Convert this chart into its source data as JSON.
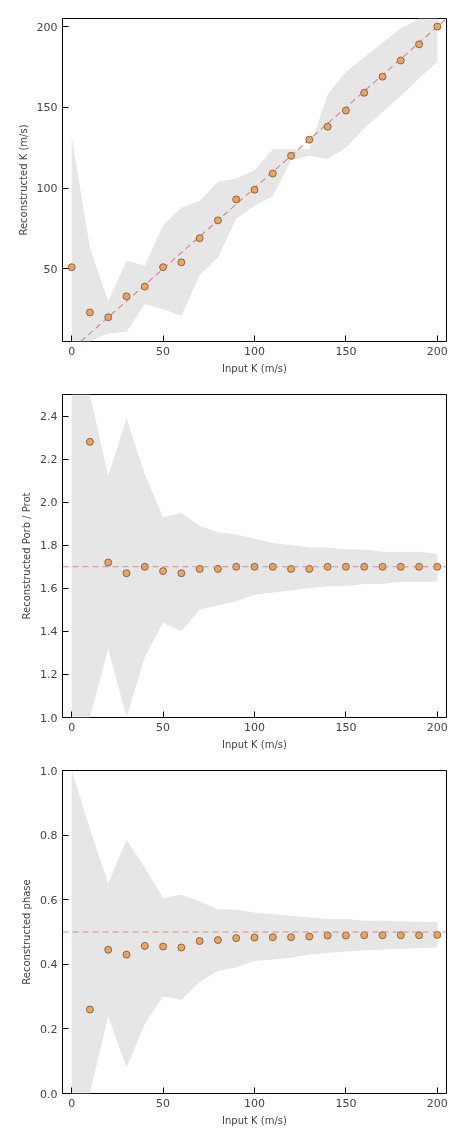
{
  "chart_data": [
    {
      "type": "scatter",
      "xlabel": "Input K (m/s)",
      "ylabel": "Reconstructed K (m/s)",
      "xlim": [
        -5,
        205
      ],
      "ylim": [
        5,
        205
      ],
      "xticks": [
        0,
        50,
        100,
        150,
        200
      ],
      "yticks": [
        50,
        100,
        150,
        200
      ],
      "grid": false,
      "marker": "circle",
      "series": [
        {
          "color": "#e8a462",
          "x": [
            0,
            10,
            20,
            30,
            40,
            50,
            60,
            70,
            80,
            90,
            100,
            110,
            120,
            130,
            140,
            150,
            160,
            170,
            180,
            190,
            200
          ],
          "values": [
            51,
            23,
            20,
            33,
            39,
            51,
            54,
            69,
            80,
            93,
            99,
            109,
            120,
            130,
            138,
            148,
            159,
            169,
            179,
            189,
            200
          ],
          "lower": [
            5,
            5,
            10,
            11,
            28,
            25,
            21,
            46,
            57,
            81,
            89,
            95,
            117,
            120,
            118,
            125,
            137,
            147,
            157,
            168,
            178
          ],
          "upper": [
            132,
            63,
            30,
            55,
            52,
            77,
            88,
            92,
            104,
            106,
            111,
            124,
            124,
            124,
            158,
            172,
            181,
            190,
            199,
            205,
            205
          ]
        },
        {
          "type": "line",
          "color": "#d98a8a",
          "line_style": "dashed",
          "marker": "none",
          "x": [
            5,
            205
          ],
          "values": [
            5,
            205
          ]
        }
      ]
    },
    {
      "type": "scatter",
      "xlabel": "Input K (m/s)",
      "ylabel": "Reconstructed Porb / Prot",
      "xlim": [
        -5,
        205
      ],
      "ylim": [
        1.0,
        2.5
      ],
      "xticks": [
        0,
        50,
        100,
        150,
        200
      ],
      "yticks": [
        {
          "value": 1.0,
          "label": "1.0"
        },
        {
          "value": 1.2,
          "label": "1.2"
        },
        {
          "value": 1.4,
          "label": "1.4"
        },
        {
          "value": 1.6,
          "label": "1.6"
        },
        {
          "value": 1.8,
          "label": "1.8"
        },
        {
          "value": 2.0,
          "label": "2.0"
        },
        {
          "value": 2.2,
          "label": "2.2"
        },
        {
          "value": 2.4,
          "label": "2.4"
        }
      ],
      "grid": false,
      "marker": "circle",
      "series": [
        {
          "color": "#e8a462",
          "x": [
            0,
            10,
            20,
            30,
            40,
            50,
            60,
            70,
            80,
            90,
            100,
            110,
            120,
            130,
            140,
            150,
            160,
            170,
            180,
            190,
            200
          ],
          "values": [
            null,
            2.28,
            1.72,
            1.67,
            1.7,
            1.68,
            1.67,
            1.69,
            1.69,
            1.7,
            1.7,
            1.7,
            1.69,
            1.69,
            1.7,
            1.7,
            1.7,
            1.7,
            1.7,
            1.7,
            1.7
          ],
          "lower": [
            1.0,
            1.0,
            1.32,
            1.0,
            1.28,
            1.44,
            1.4,
            1.5,
            1.52,
            1.54,
            1.57,
            1.58,
            1.59,
            1.6,
            1.61,
            1.61,
            1.62,
            1.62,
            1.63,
            1.63,
            1.63
          ],
          "upper": [
            2.5,
            2.5,
            2.12,
            2.39,
            2.13,
            1.93,
            1.95,
            1.89,
            1.86,
            1.85,
            1.83,
            1.81,
            1.8,
            1.79,
            1.79,
            1.78,
            1.78,
            1.77,
            1.77,
            1.77,
            1.76
          ]
        }
      ],
      "ref_lines": [
        {
          "axis": "y",
          "value": 1.7,
          "color": "#d98a8a",
          "line_style": "dashed"
        }
      ]
    },
    {
      "type": "scatter",
      "xlabel": "Input K (m/s)",
      "ylabel": "Reconstructed phase",
      "xlim": [
        -5,
        205
      ],
      "ylim": [
        0.0,
        1.0
      ],
      "xticks": [
        0,
        50,
        100,
        150,
        200
      ],
      "yticks": [
        {
          "value": 0.0,
          "label": "0.0"
        },
        {
          "value": 0.2,
          "label": "0.2"
        },
        {
          "value": 0.4,
          "label": "0.4"
        },
        {
          "value": 0.6,
          "label": "0.6"
        },
        {
          "value": 0.8,
          "label": "0.8"
        },
        {
          "value": 1.0,
          "label": "1.0"
        }
      ],
      "grid": false,
      "marker": "circle",
      "series": [
        {
          "color": "#e8a462",
          "x": [
            0,
            10,
            20,
            30,
            40,
            50,
            60,
            70,
            80,
            90,
            100,
            110,
            120,
            130,
            140,
            150,
            160,
            170,
            180,
            190,
            200
          ],
          "values": [
            null,
            0.26,
            0.445,
            0.43,
            0.457,
            0.455,
            0.452,
            0.472,
            0.475,
            0.481,
            0.483,
            0.484,
            0.484,
            0.486,
            0.489,
            0.489,
            0.49,
            0.49,
            0.49,
            0.49,
            0.491
          ],
          "lower": [
            0.0,
            0.0,
            0.24,
            0.08,
            0.215,
            0.3,
            0.29,
            0.345,
            0.38,
            0.39,
            0.41,
            0.415,
            0.42,
            0.43,
            0.435,
            0.44,
            0.443,
            0.446,
            0.448,
            0.45,
            0.452
          ],
          "upper": [
            1.0,
            0.82,
            0.65,
            0.785,
            0.7,
            0.605,
            0.615,
            0.595,
            0.57,
            0.57,
            0.56,
            0.555,
            0.55,
            0.545,
            0.54,
            0.54,
            0.535,
            0.535,
            0.533,
            0.532,
            0.53
          ]
        }
      ],
      "ref_lines": [
        {
          "axis": "y",
          "value": 0.5,
          "color": "#d98a8a",
          "line_style": "dashed"
        }
      ]
    }
  ]
}
